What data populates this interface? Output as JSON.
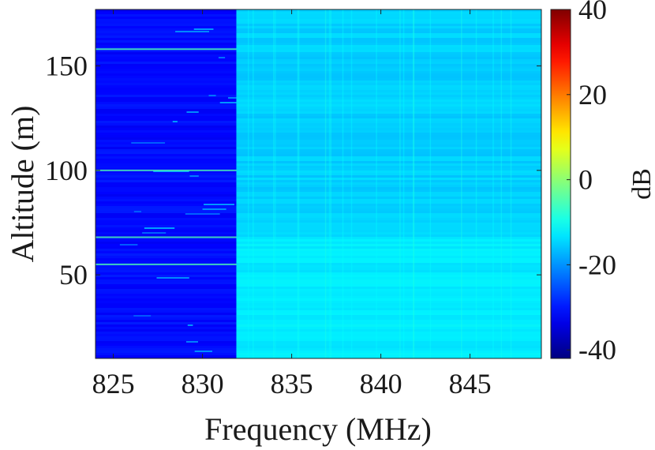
{
  "chart_data": {
    "type": "heatmap",
    "title": "",
    "xlabel": "Frequency (MHz)",
    "ylabel": "Altitude (m)",
    "xlim": [
      824,
      849
    ],
    "ylim": [
      10,
      177
    ],
    "xticks": [
      825,
      830,
      835,
      840,
      845
    ],
    "yticks": [
      50,
      100,
      150
    ],
    "colorbar": {
      "label": "dB",
      "range": [
        -42,
        40
      ],
      "ticks": [
        -40,
        -20,
        0,
        20,
        40
      ],
      "colormap": "jet",
      "colors": [
        "#00008f",
        "#0000ff",
        "#00ffff",
        "#ffff00",
        "#ff0000",
        "#800000"
      ]
    },
    "regions": [
      {
        "name": "unoccupied band",
        "x_range": [
          824,
          831.9
        ],
        "level_db": -31
      },
      {
        "name": "occupied band",
        "x_range": [
          831.9,
          849
        ],
        "level_db": -15,
        "level_db_low_altitude": -12
      }
    ],
    "bright_rows_altitude_m": [
      158,
      100,
      68,
      55
    ]
  }
}
